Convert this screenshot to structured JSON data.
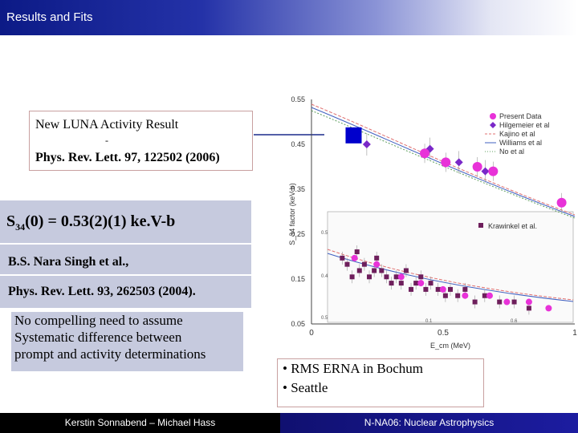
{
  "header": {
    "title": "Results and Fits"
  },
  "luna_box": {
    "line1": "New LUNA Activity Result",
    "dash": "-",
    "line3": "Phys. Rev. Lett. 97, 122502 (2006)"
  },
  "s34": {
    "prefix": "S",
    "sub": "34",
    "rest": "(0) = 0.53(2)(1)  ke.V-b"
  },
  "reference": {
    "authors": "B.S. Nara Singh et al.,",
    "journal": "Phys. Rev. Lett. 93, 262503 (2004)."
  },
  "note": {
    "lines": [
      "No compelling need to assume",
      "Systematic difference between",
      "prompt and activity determinations"
    ]
  },
  "bullets": {
    "items": [
      "• RMS ERNA in Bochum",
      "• Seattle"
    ]
  },
  "footer": {
    "left": "Kerstin Sonnabend – Michael Hass",
    "right": "N-NA06: Nuclear Astrophysics"
  },
  "chart_data": {
    "type": "scatter",
    "xlabel": "E_cm (MeV)",
    "ylabel": "S_34 factor (keV b)",
    "xlim": [
      0,
      1
    ],
    "ylim": [
      0.05,
      0.55
    ],
    "x_ticks": [
      "0",
      "0.5",
      "1"
    ],
    "y_ticks": [
      "0.05",
      "0.15",
      "0.25",
      "0.35",
      "0.45",
      "0.55"
    ],
    "inset_labels": [
      "0.1",
      "0.6",
      "0.4",
      "0.5",
      "0.5"
    ],
    "legend_upper": [
      "Present Data",
      "Hilgemeier et al",
      "Kajino et al",
      "Williams et al",
      "No et al"
    ],
    "legend_lower": [
      "Krawinkel et al."
    ],
    "colors": {
      "present": "#e832d8",
      "hilgemeier": "#7a28c8",
      "krawinkel": "#6e1f5c",
      "luna": "#0000cc"
    },
    "luna_point": {
      "x": 0.16,
      "y": 0.47
    },
    "series_upper_present": [
      [
        0.43,
        0.43
      ],
      [
        0.51,
        0.41
      ],
      [
        0.63,
        0.4
      ],
      [
        0.69,
        0.39
      ],
      [
        0.95,
        0.32
      ]
    ],
    "series_upper_hilgemeier": [
      [
        0.21,
        0.45
      ],
      [
        0.45,
        0.44
      ],
      [
        0.56,
        0.41
      ],
      [
        0.66,
        0.39
      ]
    ],
    "series_lower_krawinkel": [
      [
        0.06,
        0.2
      ],
      [
        0.08,
        0.19
      ],
      [
        0.1,
        0.17
      ],
      [
        0.12,
        0.21
      ],
      [
        0.13,
        0.18
      ],
      [
        0.15,
        0.19
      ],
      [
        0.17,
        0.17
      ],
      [
        0.19,
        0.18
      ],
      [
        0.2,
        0.2
      ],
      [
        0.22,
        0.18
      ],
      [
        0.24,
        0.17
      ],
      [
        0.26,
        0.16
      ],
      [
        0.28,
        0.17
      ],
      [
        0.3,
        0.16
      ],
      [
        0.32,
        0.18
      ],
      [
        0.34,
        0.15
      ],
      [
        0.36,
        0.16
      ],
      [
        0.38,
        0.17
      ],
      [
        0.4,
        0.15
      ],
      [
        0.42,
        0.16
      ],
      [
        0.45,
        0.15
      ],
      [
        0.48,
        0.14
      ],
      [
        0.5,
        0.15
      ],
      [
        0.53,
        0.14
      ],
      [
        0.56,
        0.15
      ],
      [
        0.6,
        0.13
      ],
      [
        0.64,
        0.14
      ],
      [
        0.7,
        0.13
      ],
      [
        0.76,
        0.13
      ],
      [
        0.82,
        0.12
      ]
    ],
    "series_lower_present": [
      [
        0.11,
        0.2
      ],
      [
        0.2,
        0.19
      ],
      [
        0.3,
        0.17
      ],
      [
        0.38,
        0.16
      ],
      [
        0.47,
        0.15
      ],
      [
        0.56,
        0.14
      ],
      [
        0.66,
        0.14
      ],
      [
        0.73,
        0.13
      ],
      [
        0.82,
        0.13
      ],
      [
        0.9,
        0.12
      ]
    ]
  }
}
